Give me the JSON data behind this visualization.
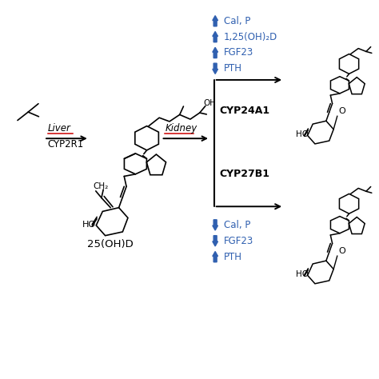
{
  "background_color": "#ffffff",
  "arrow_color": "#000000",
  "blue_color": "#3060b0",
  "red_color": "#cc0000",
  "black": "#000000",
  "liver_label": "Liver",
  "liver_enzyme": "CYP2R1",
  "kidney_label": "Kidney",
  "cyp24a1_label": "CYP24A1",
  "cyp27b1_label": "CYP27B1",
  "metabolite_label": "25(OH)D",
  "up_labels_top": [
    "Cal, P",
    "1,25(OH)₂D",
    "FGF23"
  ],
  "down_labels_top": [
    "PTH"
  ],
  "up_labels_bottom": [
    "PTH"
  ],
  "down_labels_bottom": [
    "Cal, P",
    "FGF23"
  ],
  "ch2_label": "CH₂",
  "oh_label": "OH",
  "ho_label": "HO",
  "o_label": "O"
}
